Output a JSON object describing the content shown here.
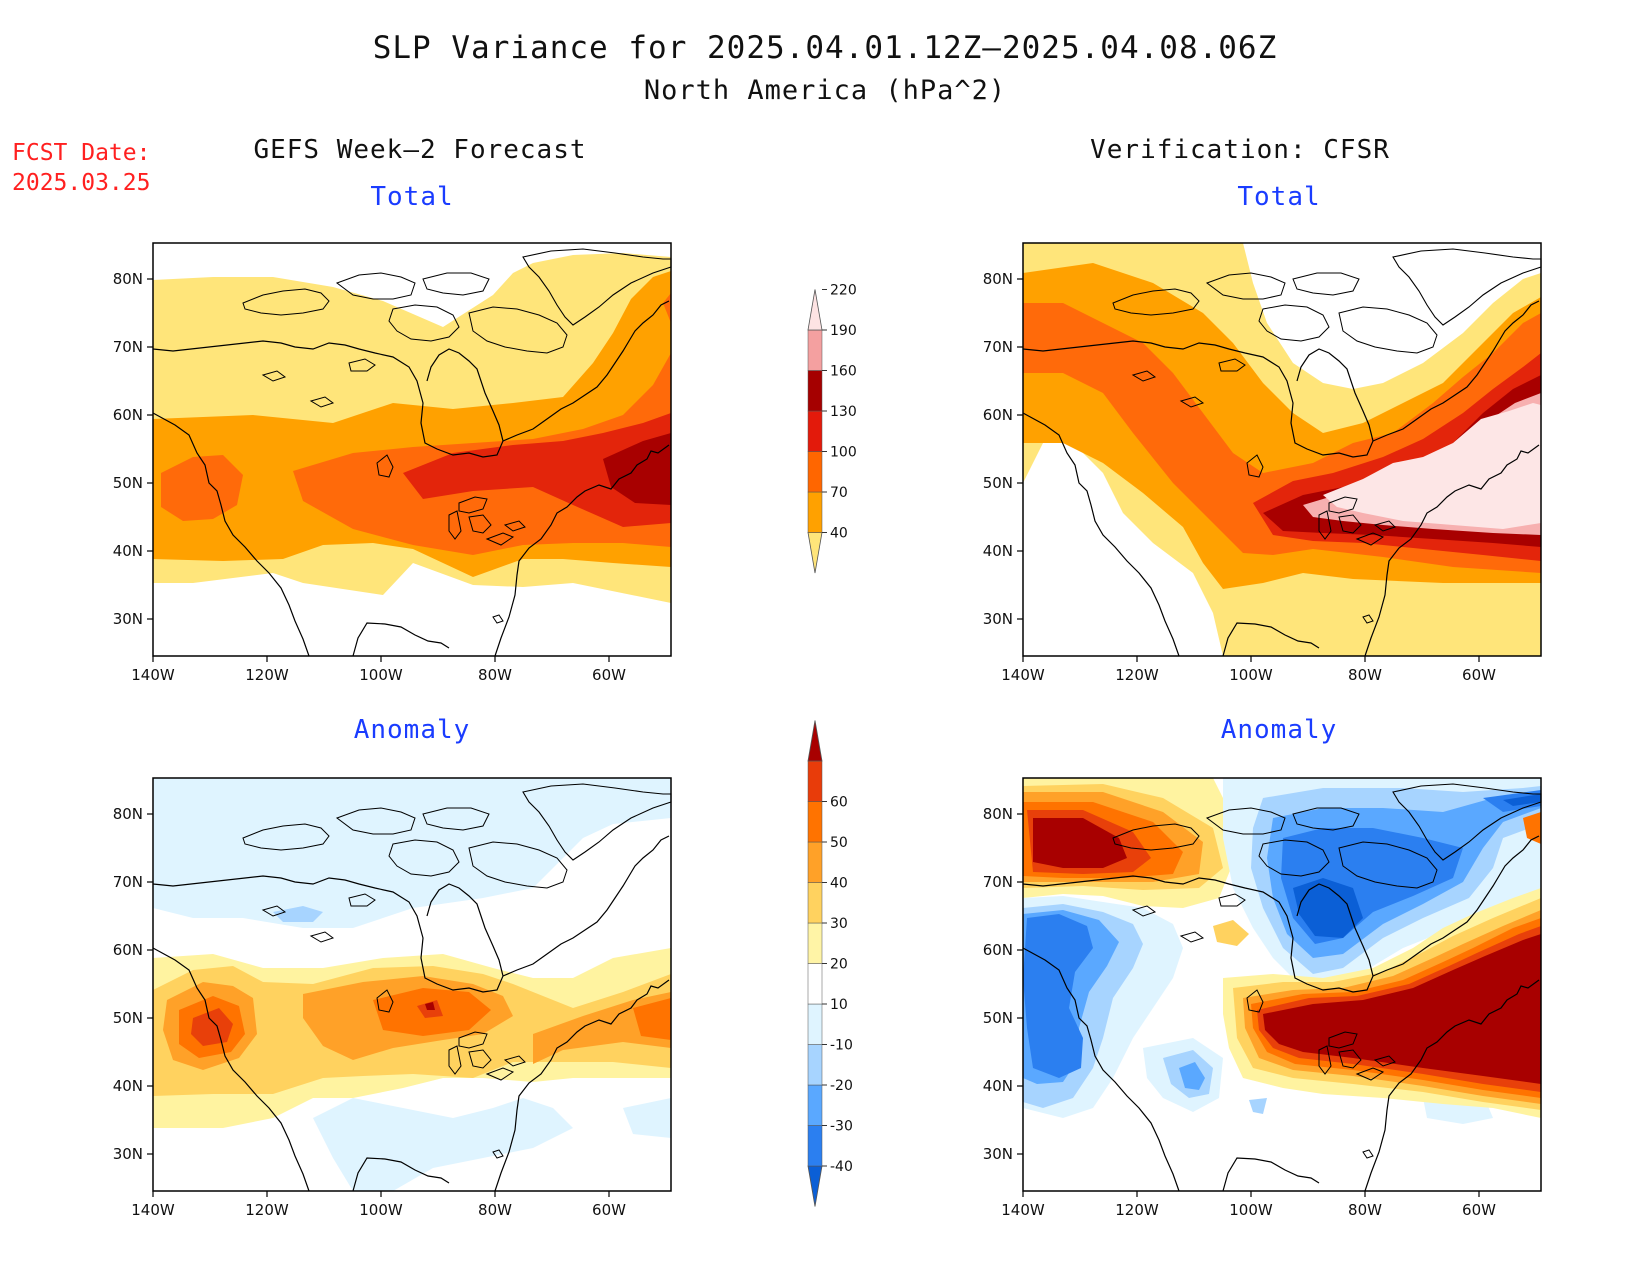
{
  "title": "SLP Variance for 2025.04.01.12Z–2025.04.08.06Z",
  "subtitle": "North America (hPa^2)",
  "fcst_date_label": "FCST Date:",
  "fcst_date_value": "2025.03.25",
  "left_column_title": "GEFS Week–2 Forecast",
  "right_column_title": "Verification: CFSR",
  "panels": {
    "tl": {
      "label": "Total"
    },
    "tr": {
      "label": "Total"
    },
    "bl": {
      "label": "Anomaly"
    },
    "br": {
      "label": "Anomaly"
    }
  },
  "axes": {
    "lon_labels": [
      "140W",
      "120W",
      "100W",
      "80W",
      "60W"
    ],
    "lat_labels": [
      "80N",
      "70N",
      "60N",
      "50N",
      "40N",
      "30N"
    ]
  },
  "colorbar_total": {
    "levels": [
      "40",
      "70",
      "100",
      "130",
      "160",
      "190",
      "220"
    ],
    "colors": [
      "#ffe57a",
      "#ffa100",
      "#ff6600",
      "#e31a0b",
      "#a50000",
      "#f4a0a0",
      "#fde3e3"
    ]
  },
  "colorbar_anomaly": {
    "levels": [
      "-40",
      "-30",
      "-20",
      "-10",
      "10",
      "20",
      "30",
      "40",
      "50",
      "60"
    ],
    "colors": [
      "#0b5fd6",
      "#2b7ff0",
      "#5aa8ff",
      "#a7d4ff",
      "#dff4ff",
      "#ffffff",
      "#fff4a6",
      "#ffd25f",
      "#ffa128",
      "#ff7300",
      "#e83c0a",
      "#a80000"
    ]
  },
  "palette": {
    "t40": "#ffe57a",
    "t70": "#ffa100",
    "t100": "#ff6a0a",
    "t130": "#e3250b",
    "t160": "#a80000",
    "t190": "#f7b0b0",
    "t220": "#fde6e6",
    "a10": "#fff3a0",
    "a20": "#ffd25f",
    "a30": "#ffa128",
    "a40": "#ff7300",
    "a50": "#e8400a",
    "a60": "#a80000",
    "am10": "#dff4ff",
    "am20": "#a7d4ff",
    "am30": "#5aa8ff",
    "am40": "#2b7ff0",
    "am50": "#0b5fd6"
  }
}
